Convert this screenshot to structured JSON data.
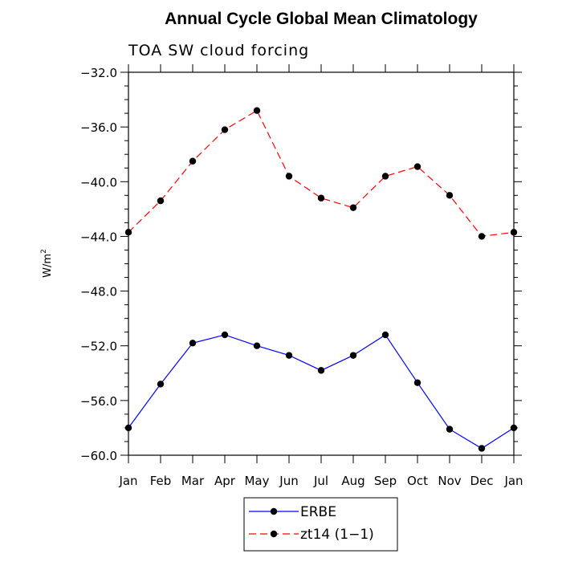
{
  "chart_data": {
    "type": "line",
    "title": "Annual Cycle Global Mean Climatology",
    "subtitle": "TOA SW cloud forcing",
    "ylabel": "W/m",
    "ylabel_sup": "2",
    "xlabel": "",
    "categories": [
      "Jan",
      "Feb",
      "Mar",
      "Apr",
      "May",
      "Jun",
      "Jul",
      "Aug",
      "Sep",
      "Oct",
      "Nov",
      "Dec",
      "Jan"
    ],
    "ylim": [
      -60.0,
      -32.0
    ],
    "yticks": [
      -32.0,
      -36.0,
      -40.0,
      -44.0,
      -48.0,
      -52.0,
      -56.0,
      -60.0
    ],
    "ytick_labels": [
      "−32.0",
      "−36.0",
      "−40.0",
      "−44.0",
      "−48.0",
      "−52.0",
      "−56.0",
      "−60.0"
    ],
    "series": [
      {
        "name": "ERBE",
        "color": "#0000ff",
        "style": "solid",
        "values": [
          -58.0,
          -54.8,
          -51.8,
          -51.2,
          -52.0,
          -52.7,
          -53.8,
          -52.7,
          -51.2,
          -54.7,
          -58.1,
          -59.5,
          -58.0
        ]
      },
      {
        "name": "zt14 (1−1)",
        "color": "#ff0000",
        "style": "dashed",
        "values": [
          -43.7,
          -41.4,
          -38.5,
          -36.2,
          -34.8,
          -39.6,
          -41.2,
          -41.9,
          -39.6,
          -38.9,
          -41.0,
          -44.0,
          -43.7
        ]
      }
    ],
    "legend_position": "bottom"
  }
}
